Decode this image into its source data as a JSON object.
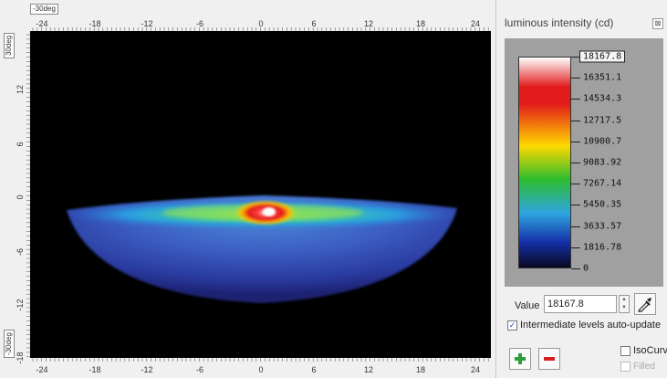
{
  "plot": {
    "corner_top": "-30deg",
    "corner_left_top": "30deg",
    "corner_left_bottom": "-30deg",
    "x_ticks_top": [
      "-24",
      "-18",
      "-12",
      "-6",
      "0",
      "6",
      "12",
      "18",
      "24"
    ],
    "x_ticks_bottom": [
      "-24",
      "-18",
      "-12",
      "-6",
      "0",
      "6",
      "12",
      "18",
      "24"
    ],
    "y_ticks": [
      "12",
      "6",
      "0",
      "-6",
      "-12",
      "-18"
    ]
  },
  "panel": {
    "title": "luminous intensity (cd)",
    "close_glyph": "⊠",
    "legend_values": [
      "18167.8",
      "16351.1",
      "14534.3",
      "12717.5",
      "10900.7",
      "9083.92",
      "7267.14",
      "5450.35",
      "3633.57",
      "1816.78",
      "0"
    ],
    "value_label": "Value",
    "value": "18167.8",
    "auto_update_label": "Intermediate levels auto-update",
    "auto_update_checked": true,
    "isocurve_label": "IsoCurve",
    "isocurve_checked": false,
    "filled_label": "Filled",
    "filled_checked": false
  },
  "colors": {
    "plus": "#2e9e3a",
    "minus": "#d52020",
    "scale": [
      "#ffffff",
      "#e21b1b",
      "#ffd800",
      "#2ebd2e",
      "#2fa6e0",
      "#1530a8",
      "#080820"
    ]
  }
}
